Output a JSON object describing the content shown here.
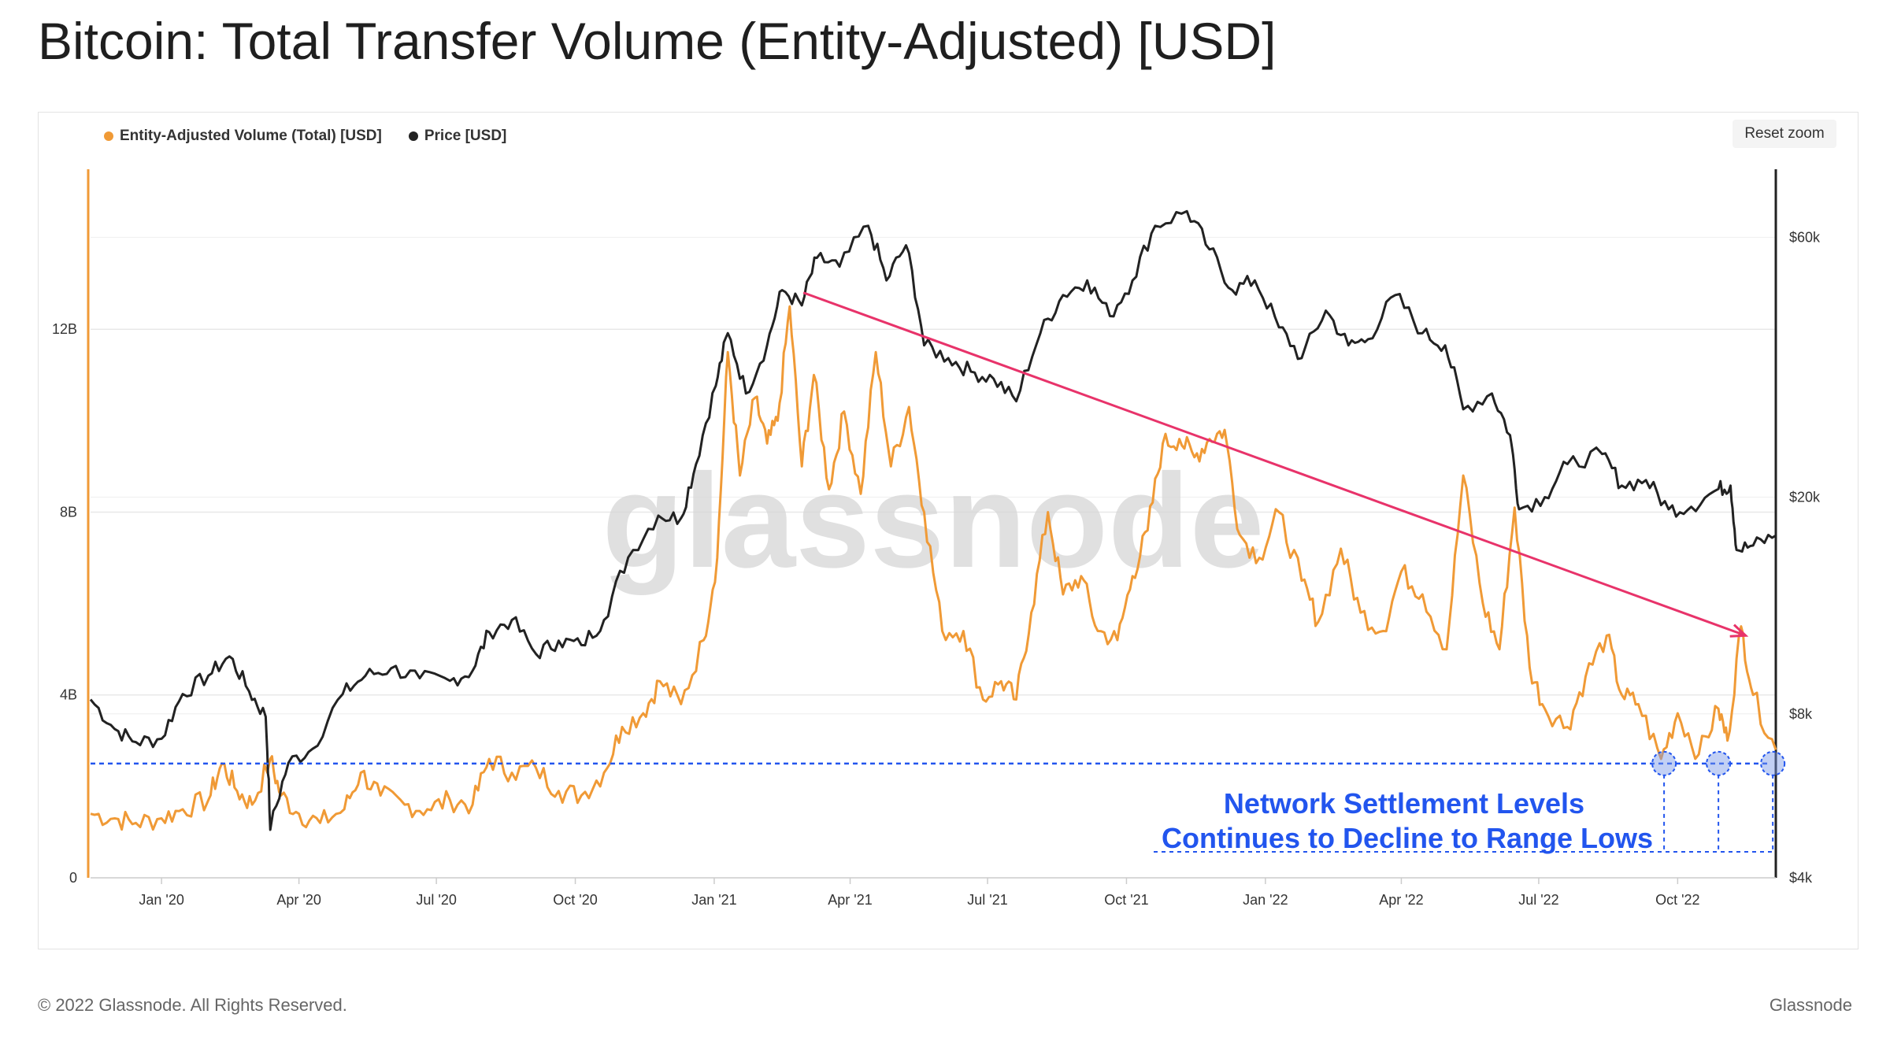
{
  "page": {
    "title": "Bitcoin: Total Transfer Volume (Entity-Adjusted) [USD]",
    "copyright": "© 2022 Glassnode. All Rights Reserved.",
    "brand": "Glassnode",
    "watermark": "glassnode",
    "reset_zoom": "Reset zoom"
  },
  "chart_data": {
    "type": "line",
    "x_ticks": [
      "Jan '20",
      "Apr '20",
      "Jul '20",
      "Oct '20",
      "Jan '21",
      "Apr '21",
      "Jul '21",
      "Oct '21",
      "Jan '22",
      "Apr '22",
      "Jul '22",
      "Oct '22"
    ],
    "x_range": [
      "2019-11-15",
      "2022-12-05"
    ],
    "left_axis": {
      "ticks": [
        "0",
        "4B",
        "8B",
        "12B"
      ],
      "tick_values": [
        0,
        4,
        8,
        12
      ],
      "unit": "B USD",
      "range": [
        0,
        15.5
      ]
    },
    "right_axis": {
      "scale": "log",
      "ticks": [
        "$4k",
        "$8k",
        "$20k",
        "$60k"
      ],
      "tick_values": [
        4000,
        8000,
        20000,
        60000
      ],
      "range": [
        4000,
        80000
      ]
    },
    "series": [
      {
        "name": "Entity-Adjusted Volume (Total) [USD]",
        "color": "#f09a36",
        "axis": "left",
        "points": [
          [
            "2019-11-15",
            1.4
          ],
          [
            "2019-12-01",
            1.3
          ],
          [
            "2019-12-15",
            1.2
          ],
          [
            "2020-01-01",
            1.3
          ],
          [
            "2020-01-15",
            1.5
          ],
          [
            "2020-02-01",
            1.7
          ],
          [
            "2020-02-10",
            2.5
          ],
          [
            "2020-02-20",
            1.9
          ],
          [
            "2020-03-01",
            1.6
          ],
          [
            "2020-03-13",
            2.6
          ],
          [
            "2020-03-20",
            1.8
          ],
          [
            "2020-04-01",
            1.4
          ],
          [
            "2020-04-15",
            1.2
          ],
          [
            "2020-05-01",
            1.5
          ],
          [
            "2020-05-12",
            2.3
          ],
          [
            "2020-05-25",
            1.8
          ],
          [
            "2020-06-10",
            1.6
          ],
          [
            "2020-06-25",
            1.5
          ],
          [
            "2020-07-10",
            1.7
          ],
          [
            "2020-07-25",
            1.6
          ],
          [
            "2020-08-05",
            2.6
          ],
          [
            "2020-08-20",
            2.3
          ],
          [
            "2020-09-05",
            2.4
          ],
          [
            "2020-09-20",
            1.9
          ],
          [
            "2020-10-05",
            1.8
          ],
          [
            "2020-10-20",
            2.3
          ],
          [
            "2020-11-01",
            3.3
          ],
          [
            "2020-11-15",
            3.6
          ],
          [
            "2020-11-26",
            4.3
          ],
          [
            "2020-12-10",
            3.8
          ],
          [
            "2020-12-25",
            5.2
          ],
          [
            "2021-01-03",
            7.0
          ],
          [
            "2021-01-10",
            11.5
          ],
          [
            "2021-01-18",
            8.8
          ],
          [
            "2021-01-28",
            10.5
          ],
          [
            "2021-02-05",
            9.5
          ],
          [
            "2021-02-12",
            10.0
          ],
          [
            "2021-02-20",
            12.5
          ],
          [
            "2021-02-28",
            9.0
          ],
          [
            "2021-03-08",
            11.0
          ],
          [
            "2021-03-18",
            8.5
          ],
          [
            "2021-03-28",
            10.2
          ],
          [
            "2021-04-08",
            8.4
          ],
          [
            "2021-04-18",
            11.5
          ],
          [
            "2021-04-28",
            9.0
          ],
          [
            "2021-05-10",
            10.3
          ],
          [
            "2021-05-20",
            8.0
          ],
          [
            "2021-06-01",
            5.4
          ],
          [
            "2021-06-15",
            5.4
          ],
          [
            "2021-06-28",
            3.9
          ],
          [
            "2021-07-10",
            4.3
          ],
          [
            "2021-07-20",
            3.9
          ],
          [
            "2021-07-30",
            5.8
          ],
          [
            "2021-08-10",
            8.0
          ],
          [
            "2021-08-20",
            6.2
          ],
          [
            "2021-09-01",
            6.6
          ],
          [
            "2021-09-12",
            5.4
          ],
          [
            "2021-09-25",
            5.2
          ],
          [
            "2021-10-05",
            6.6
          ],
          [
            "2021-10-15",
            7.6
          ],
          [
            "2021-10-25",
            9.5
          ],
          [
            "2021-11-05",
            9.6
          ],
          [
            "2021-11-15",
            9.2
          ],
          [
            "2021-11-25",
            9.6
          ],
          [
            "2021-12-05",
            9.8
          ],
          [
            "2021-12-15",
            7.5
          ],
          [
            "2021-12-28",
            7.0
          ],
          [
            "2022-01-10",
            8.0
          ],
          [
            "2022-01-25",
            6.5
          ],
          [
            "2022-02-05",
            5.6
          ],
          [
            "2022-02-20",
            7.2
          ],
          [
            "2022-03-05",
            5.8
          ],
          [
            "2022-03-20",
            5.4
          ],
          [
            "2022-04-01",
            6.7
          ],
          [
            "2022-04-15",
            6.2
          ],
          [
            "2022-05-01",
            5.0
          ],
          [
            "2022-05-12",
            8.8
          ],
          [
            "2022-05-25",
            6.0
          ],
          [
            "2022-06-05",
            5.0
          ],
          [
            "2022-06-15",
            8.1
          ],
          [
            "2022-06-25",
            4.6
          ],
          [
            "2022-07-05",
            3.7
          ],
          [
            "2022-07-20",
            3.3
          ],
          [
            "2022-08-01",
            4.4
          ],
          [
            "2022-08-15",
            5.3
          ],
          [
            "2022-08-25",
            4.0
          ],
          [
            "2022-09-05",
            3.8
          ],
          [
            "2022-09-20",
            2.6
          ],
          [
            "2022-10-01",
            3.6
          ],
          [
            "2022-10-15",
            2.7
          ],
          [
            "2022-10-28",
            3.7
          ],
          [
            "2022-11-03",
            3.0
          ],
          [
            "2022-11-12",
            5.5
          ],
          [
            "2022-11-20",
            4.0
          ],
          [
            "2022-12-05",
            2.8
          ]
        ]
      },
      {
        "name": "Price [USD]",
        "color": "#222222",
        "axis": "right",
        "points": [
          [
            "2019-11-15",
            8500
          ],
          [
            "2019-12-01",
            7500
          ],
          [
            "2019-12-15",
            7100
          ],
          [
            "2020-01-01",
            7200
          ],
          [
            "2020-01-15",
            8700
          ],
          [
            "2020-02-01",
            9400
          ],
          [
            "2020-02-15",
            10200
          ],
          [
            "2020-02-28",
            8800
          ],
          [
            "2020-03-10",
            7900
          ],
          [
            "2020-03-13",
            4900
          ],
          [
            "2020-03-25",
            6500
          ],
          [
            "2020-04-10",
            6900
          ],
          [
            "2020-04-30",
            8700
          ],
          [
            "2020-05-15",
            9400
          ],
          [
            "2020-06-01",
            9700
          ],
          [
            "2020-06-20",
            9300
          ],
          [
            "2020-07-10",
            9200
          ],
          [
            "2020-07-25",
            9600
          ],
          [
            "2020-08-05",
            11300
          ],
          [
            "2020-08-20",
            11900
          ],
          [
            "2020-09-05",
            10300
          ],
          [
            "2020-09-20",
            10900
          ],
          [
            "2020-10-05",
            10700
          ],
          [
            "2020-10-20",
            11900
          ],
          [
            "2020-11-05",
            15500
          ],
          [
            "2020-11-25",
            18500
          ],
          [
            "2020-12-10",
            18300
          ],
          [
            "2020-12-20",
            23000
          ],
          [
            "2021-01-02",
            32000
          ],
          [
            "2021-01-10",
            40000
          ],
          [
            "2021-01-22",
            31000
          ],
          [
            "2021-02-05",
            38000
          ],
          [
            "2021-02-15",
            48000
          ],
          [
            "2021-02-28",
            45000
          ],
          [
            "2021-03-10",
            55000
          ],
          [
            "2021-03-25",
            53000
          ],
          [
            "2021-04-13",
            63000
          ],
          [
            "2021-04-25",
            50000
          ],
          [
            "2021-05-08",
            58000
          ],
          [
            "2021-05-20",
            38000
          ],
          [
            "2021-06-05",
            36000
          ],
          [
            "2021-06-20",
            34000
          ],
          [
            "2021-07-05",
            33000
          ],
          [
            "2021-07-20",
            30000
          ],
          [
            "2021-08-05",
            40000
          ],
          [
            "2021-08-20",
            47000
          ],
          [
            "2021-09-05",
            50000
          ],
          [
            "2021-09-20",
            43000
          ],
          [
            "2021-10-05",
            50000
          ],
          [
            "2021-10-20",
            63000
          ],
          [
            "2021-11-10",
            67000
          ],
          [
            "2021-11-25",
            57000
          ],
          [
            "2021-12-10",
            48000
          ],
          [
            "2021-12-25",
            50000
          ],
          [
            "2022-01-10",
            41000
          ],
          [
            "2022-01-25",
            36000
          ],
          [
            "2022-02-10",
            44000
          ],
          [
            "2022-02-25",
            38000
          ],
          [
            "2022-03-10",
            39000
          ],
          [
            "2022-03-28",
            47000
          ],
          [
            "2022-04-15",
            40000
          ],
          [
            "2022-04-30",
            38000
          ],
          [
            "2022-05-12",
            29000
          ],
          [
            "2022-05-31",
            31000
          ],
          [
            "2022-06-12",
            26000
          ],
          [
            "2022-06-18",
            19000
          ],
          [
            "2022-07-05",
            20000
          ],
          [
            "2022-07-20",
            23000
          ],
          [
            "2022-08-12",
            24000
          ],
          [
            "2022-08-25",
            21000
          ],
          [
            "2022-09-10",
            21500
          ],
          [
            "2022-09-25",
            19000
          ],
          [
            "2022-10-10",
            19200
          ],
          [
            "2022-10-28",
            20700
          ],
          [
            "2022-11-05",
            21000
          ],
          [
            "2022-11-09",
            16000
          ],
          [
            "2022-11-20",
            16300
          ],
          [
            "2022-12-05",
            17000
          ]
        ]
      }
    ],
    "trend_line": {
      "from": [
        "2021-03-01",
        12.8
      ],
      "to": [
        "2022-11-15",
        5.3
      ],
      "color": "#e8336a"
    },
    "support_level": {
      "value": 2.5,
      "color": "#2255ee"
    },
    "markers": [
      {
        "date": "2022-09-22",
        "value": 2.5
      },
      {
        "date": "2022-10-28",
        "value": 2.5
      },
      {
        "date": "2022-12-03",
        "value": 2.5
      }
    ],
    "annotation": [
      "Network Settlement Levels",
      "Continues to Decline to Range Lows"
    ],
    "grid": true,
    "legend_placement": "top-left"
  }
}
